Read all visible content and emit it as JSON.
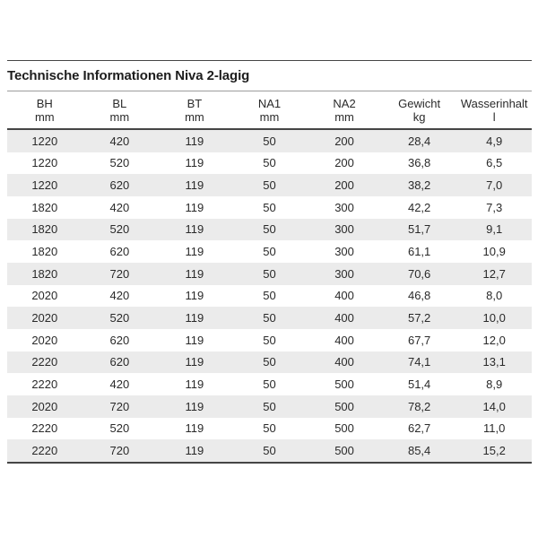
{
  "table": {
    "title": "Technische Informationen Niva 2-lagig",
    "columns": [
      {
        "label": "BH",
        "unit": "mm"
      },
      {
        "label": "BL",
        "unit": "mm"
      },
      {
        "label": "BT",
        "unit": "mm"
      },
      {
        "label": "NA1",
        "unit": "mm"
      },
      {
        "label": "NA2",
        "unit": "mm"
      },
      {
        "label": "Gewicht",
        "unit": "kg"
      },
      {
        "label": "Wasserinhalt",
        "unit": "l"
      }
    ],
    "rows": [
      [
        "1220",
        "420",
        "119",
        "50",
        "200",
        "28,4",
        "4,9"
      ],
      [
        "1220",
        "520",
        "119",
        "50",
        "200",
        "36,8",
        "6,5"
      ],
      [
        "1220",
        "620",
        "119",
        "50",
        "200",
        "38,2",
        "7,0"
      ],
      [
        "1820",
        "420",
        "119",
        "50",
        "300",
        "42,2",
        "7,3"
      ],
      [
        "1820",
        "520",
        "119",
        "50",
        "300",
        "51,7",
        "9,1"
      ],
      [
        "1820",
        "620",
        "119",
        "50",
        "300",
        "61,1",
        "10,9"
      ],
      [
        "1820",
        "720",
        "119",
        "50",
        "300",
        "70,6",
        "12,7"
      ],
      [
        "2020",
        "420",
        "119",
        "50",
        "400",
        "46,8",
        "8,0"
      ],
      [
        "2020",
        "520",
        "119",
        "50",
        "400",
        "57,2",
        "10,0"
      ],
      [
        "2020",
        "620",
        "119",
        "50",
        "400",
        "67,7",
        "12,0"
      ],
      [
        "2220",
        "620",
        "119",
        "50",
        "400",
        "74,1",
        "13,1"
      ],
      [
        "2220",
        "420",
        "119",
        "50",
        "500",
        "51,4",
        "8,9"
      ],
      [
        "2020",
        "720",
        "119",
        "50",
        "500",
        "78,2",
        "14,0"
      ],
      [
        "2220",
        "520",
        "119",
        "50",
        "500",
        "62,7",
        "11,0"
      ],
      [
        "2220",
        "720",
        "119",
        "50",
        "500",
        "85,4",
        "15,2"
      ]
    ],
    "colors": {
      "stripe": "#ebebeb",
      "text": "#2a2a2a",
      "rule_dark": "#454545",
      "rule_light": "#9c9c9c",
      "background": "#ffffff"
    }
  }
}
